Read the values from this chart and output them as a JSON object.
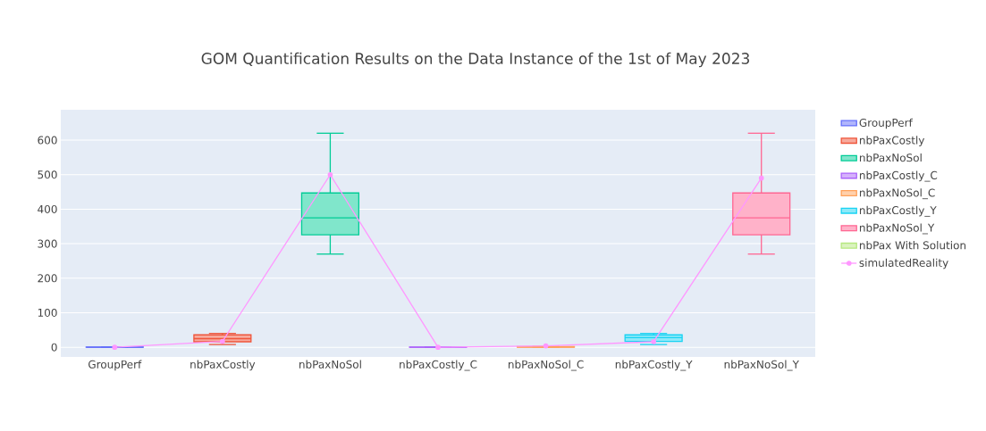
{
  "chart_data": {
    "type": "box",
    "title": "GOM Quantification Results on the Data Instance of the 1st of May 2023",
    "categories": [
      "GroupPerf",
      "nbPaxCostly",
      "nbPaxNoSol",
      "nbPaxCostly_C",
      "nbPaxNoSol_C",
      "nbPaxCostly_Y",
      "nbPaxNoSol_Y"
    ],
    "series": [
      {
        "name": "GroupPerf",
        "color": "#636efa",
        "boxes": [
          {
            "low": 0,
            "q1": 0,
            "median": 0,
            "q3": 1,
            "high": 1
          },
          null,
          null,
          null,
          null,
          null,
          null
        ]
      },
      {
        "name": "nbPaxCostly",
        "color": "#ef553b",
        "boxes": [
          null,
          {
            "low": 8,
            "q1": 16,
            "median": 25,
            "q3": 36,
            "high": 40
          },
          null,
          null,
          null,
          null,
          null
        ]
      },
      {
        "name": "nbPaxNoSol",
        "color": "#00cc96",
        "boxes": [
          null,
          null,
          {
            "low": 270,
            "q1": 326,
            "median": 375,
            "q3": 447,
            "high": 620
          },
          null,
          null,
          null,
          null
        ]
      },
      {
        "name": "nbPaxCostly_C",
        "color": "#ab63fa",
        "boxes": [
          null,
          null,
          null,
          {
            "low": 0,
            "q1": 0,
            "median": 0,
            "q3": 1,
            "high": 1
          },
          null,
          null,
          null
        ]
      },
      {
        "name": "nbPaxNoSol_C",
        "color": "#ffa15a",
        "boxes": [
          null,
          null,
          null,
          null,
          {
            "low": 0,
            "q1": 0,
            "median": 1,
            "q3": 2,
            "high": 3
          },
          null,
          null
        ]
      },
      {
        "name": "nbPaxCostly_Y",
        "color": "#19d3f3",
        "boxes": [
          null,
          null,
          null,
          null,
          null,
          {
            "low": 8,
            "q1": 17,
            "median": 28,
            "q3": 36,
            "high": 40
          },
          null
        ]
      },
      {
        "name": "nbPaxNoSol_Y",
        "color": "#ff6692",
        "boxes": [
          null,
          null,
          null,
          null,
          null,
          null,
          {
            "low": 270,
            "q1": 326,
            "median": 375,
            "q3": 447,
            "high": 620
          }
        ]
      },
      {
        "name": "nbPax With  Solution",
        "color": "#b6e880",
        "boxes": [
          null,
          null,
          null,
          null,
          null,
          null,
          null
        ]
      },
      {
        "name": "simulatedReality",
        "color": "#ff97ff",
        "type": "line",
        "values": [
          0,
          17,
          500,
          0,
          4,
          16,
          490
        ]
      }
    ],
    "ylim": [
      -28,
      688
    ],
    "yticks": [
      0,
      100,
      200,
      300,
      400,
      500,
      600
    ],
    "grid": "y",
    "legend": "right",
    "marker": "circle"
  }
}
